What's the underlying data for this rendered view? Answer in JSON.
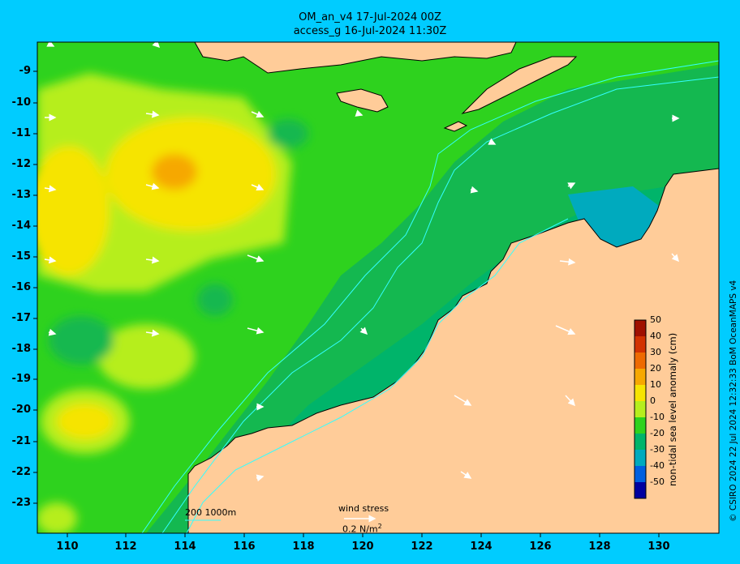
{
  "title": {
    "line1": "OM_an_v4  17-Jul-2024 00Z",
    "line2": "access_g 16-Jul-2024 11:30Z"
  },
  "map": {
    "lat_ticks": [
      "-9",
      "-10",
      "-11",
      "-12",
      "-13",
      "-14",
      "-15",
      "-16",
      "-17",
      "-18",
      "-19",
      "-20",
      "-21",
      "-22",
      "-23"
    ],
    "lon_ticks": [
      "110",
      "112",
      "114",
      "116",
      "118",
      "120",
      "122",
      "124",
      "126",
      "128",
      "130"
    ],
    "bathymetry_legend": "200  1000m",
    "wind_stress_label": "wind stress",
    "wind_stress_scale": "0.2 N/m",
    "wind_stress_scale_sup": "2",
    "colors": {
      "land": "#ffcc99",
      "background": "#00ccff",
      "isobath": "#33ffff",
      "arrow": "#ffffff"
    }
  },
  "colorbar": {
    "label": "non-tidal sea level anomaly (cm)",
    "ticks": [
      "50",
      "40",
      "30",
      "20",
      "10",
      "0",
      "-10",
      "-20",
      "-30",
      "-40",
      "-50"
    ],
    "colors": [
      "#a01000",
      "#d23200",
      "#ee6a00",
      "#f6a800",
      "#f6e400",
      "#b6ee1e",
      "#2ed21e",
      "#00b46a",
      "#00aabe",
      "#0060e0",
      "#0000a0"
    ]
  },
  "credit": "© CSIRO 2024   22 Jul 2024 12:32:33 BoM OceanMAPS v4"
}
